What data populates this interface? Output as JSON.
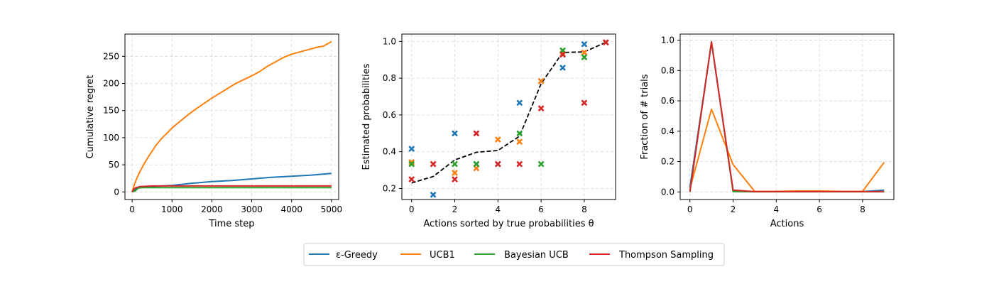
{
  "legend": {
    "entries": [
      {
        "label": "ε-Greedy",
        "color": "#1f77b4"
      },
      {
        "label": "UCB1",
        "color": "#ff7f0e"
      },
      {
        "label": "Bayesian UCB",
        "color": "#2ca02c"
      },
      {
        "label": "Thompson Sampling",
        "color": "#d62728"
      }
    ]
  },
  "chart_data": [
    {
      "type": "line",
      "xlabel": "Time step",
      "ylabel": "Cumulative regret",
      "xlim": [
        -180,
        5180
      ],
      "ylim": [
        -14,
        291
      ],
      "xticks": [
        0,
        1000,
        2000,
        3000,
        4000,
        5000
      ],
      "yticks": [
        0,
        50,
        100,
        150,
        200,
        250
      ],
      "grid": true,
      "series": [
        {
          "name": "ε-Greedy",
          "color": "#1f77b4",
          "x": [
            0,
            150,
            500,
            1000,
            1500,
            2000,
            2500,
            3000,
            3500,
            4000,
            4500,
            5000
          ],
          "y": [
            0,
            8,
            10,
            12,
            16,
            19,
            21,
            24,
            27,
            29,
            31,
            34
          ]
        },
        {
          "name": "UCB1",
          "color": "#ff7f0e",
          "x": [
            0,
            50,
            100,
            200,
            300,
            400,
            500,
            600,
            700,
            800,
            900,
            1000,
            1200,
            1400,
            1600,
            1800,
            2000,
            2200,
            2400,
            2600,
            2800,
            3000,
            3200,
            3400,
            3600,
            3800,
            4000,
            4200,
            4400,
            4600,
            4800,
            5000
          ],
          "y": [
            0,
            12,
            22,
            38,
            52,
            64,
            75,
            86,
            95,
            103,
            110,
            118,
            130,
            142,
            153,
            163,
            173,
            182,
            191,
            200,
            207,
            214,
            222,
            232,
            240,
            248,
            254,
            258,
            262,
            266,
            269,
            277
          ]
        },
        {
          "name": "Bayesian UCB",
          "color": "#2ca02c",
          "x": [
            0,
            80,
            150,
            250,
            5000
          ],
          "y": [
            0,
            2,
            7,
            8,
            8
          ]
        },
        {
          "name": "Thompson Sampling",
          "color": "#d62728",
          "x": [
            0,
            50,
            100,
            200,
            500,
            5000
          ],
          "y": [
            0,
            6,
            8,
            10,
            11,
            11
          ]
        }
      ]
    },
    {
      "type": "scatter",
      "xlabel": "Actions sorted by true probabilities θ",
      "ylabel": "Estimated probabilities",
      "xlim": [
        -0.45,
        9.45
      ],
      "ylim": [
        0.14,
        1.04
      ],
      "xticks": [
        0,
        2,
        4,
        6,
        8
      ],
      "yticks": [
        0.2,
        0.4,
        0.6,
        0.8,
        1.0
      ],
      "grid": true,
      "true_probabilities": {
        "x": [
          0,
          1,
          2,
          3,
          4,
          5,
          6,
          7,
          8,
          9
        ],
        "y": [
          0.23,
          0.265,
          0.355,
          0.397,
          0.407,
          0.484,
          0.77,
          0.94,
          0.943,
          0.995
        ]
      },
      "series": [
        {
          "name": "ε-Greedy",
          "color": "#1f77b4",
          "x": [
            0,
            1,
            2,
            3,
            4,
            5,
            6,
            7,
            8,
            9
          ],
          "y": [
            0.416,
            0.166,
            0.5,
            0.333,
            0.333,
            0.666,
            0.784,
            0.857,
            0.985,
            0.995
          ]
        },
        {
          "name": "UCB1",
          "color": "#ff7f0e",
          "x": [
            0,
            1,
            2,
            3,
            4,
            5,
            6,
            7,
            8,
            9
          ],
          "y": [
            0.343,
            0.333,
            0.285,
            0.31,
            0.466,
            0.454,
            0.784,
            0.933,
            0.94,
            0.995
          ]
        },
        {
          "name": "Bayesian UCB",
          "color": "#2ca02c",
          "x": [
            0,
            2,
            3,
            5,
            6,
            7,
            8
          ],
          "y": [
            0.333,
            0.333,
            0.333,
            0.5,
            0.333,
            0.951,
            0.914
          ]
        },
        {
          "name": "Thompson Sampling",
          "color": "#d62728",
          "x": [
            0,
            1,
            2,
            3,
            4,
            5,
            6,
            7,
            8,
            9
          ],
          "y": [
            0.25,
            0.333,
            0.25,
            0.5,
            0.333,
            0.333,
            0.636,
            0.928,
            0.666,
            0.995
          ]
        }
      ]
    },
    {
      "type": "line",
      "xlabel": "Actions",
      "ylabel": "Fraction of # trials",
      "xlim": [
        -0.45,
        9.45
      ],
      "ylim": [
        -0.05,
        1.04
      ],
      "xticks": [
        0,
        2,
        4,
        6,
        8
      ],
      "yticks": [
        0.0,
        0.2,
        0.4,
        0.6,
        0.8,
        1.0
      ],
      "grid": true,
      "series": [
        {
          "name": "ε-Greedy",
          "color": "#1f77b4",
          "x": [
            0,
            1,
            2,
            3,
            4,
            5,
            6,
            7,
            8,
            9
          ],
          "y": [
            0.03,
            0.985,
            0.004,
            0.002,
            0.002,
            0.002,
            0.002,
            0.002,
            0.002,
            0.012
          ]
        },
        {
          "name": "UCB1",
          "color": "#ff7f0e",
          "x": [
            0,
            1,
            2,
            3,
            4,
            5,
            6,
            7,
            8,
            9
          ],
          "y": [
            0.02,
            0.545,
            0.18,
            0.004,
            0.004,
            0.006,
            0.006,
            0.004,
            0.004,
            0.195
          ]
        },
        {
          "name": "Bayesian UCB",
          "color": "#2ca02c",
          "x": [
            0,
            1,
            2,
            3,
            4,
            5,
            6,
            7,
            8,
            9
          ],
          "y": [
            0.0,
            0.99,
            0.002,
            0.001,
            0.001,
            0.001,
            0.001,
            0.001,
            0.001,
            0.001
          ]
        },
        {
          "name": "Thompson Sampling",
          "color": "#d62728",
          "x": [
            0,
            1,
            2,
            3,
            4,
            5,
            6,
            7,
            8,
            9
          ],
          "y": [
            0.0,
            0.988,
            0.012,
            0.002,
            0.002,
            0.002,
            0.002,
            0.002,
            0.002,
            0.002
          ]
        }
      ]
    }
  ]
}
